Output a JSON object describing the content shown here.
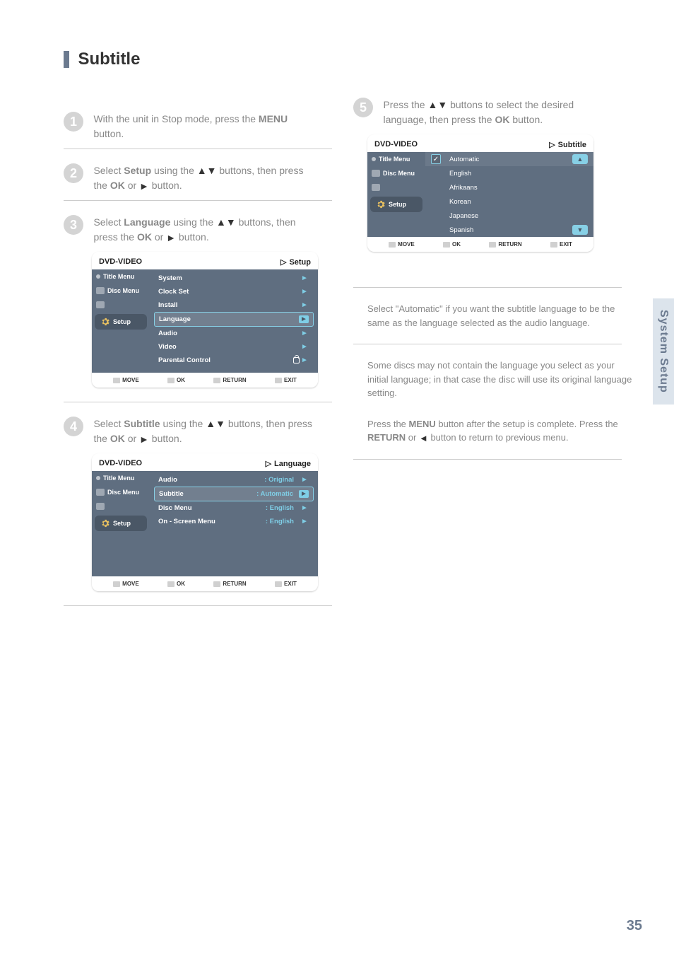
{
  "page": {
    "section_title": "Subtitle",
    "side_tab": "System Setup",
    "page_number": "35"
  },
  "steps": {
    "s1_num": "1",
    "s1_text_a": "With the unit in Stop mode, press the ",
    "s1_text_b": " button.",
    "s1_btn": "MENU",
    "s2_num": "2",
    "s2_text_a": "Select ",
    "s2_bold": "Setup",
    "s2_text_b": " using the ",
    "s2_arrows": "▲▼",
    "s2_text_c": " buttons, then press the ",
    "s2_btn": "OK",
    "s2_text_d": " or ",
    "s2_play": "►",
    "s2_text_e": " button.",
    "s3_num": "3",
    "s3_text_a": "Select ",
    "s3_bold": "Language",
    "s3_text_b": " using the ",
    "s3_arrows": "▲▼",
    "s3_text_c": " buttons, then press the ",
    "s3_btn": "OK",
    "s3_text_d": " or ",
    "s3_play": "►",
    "s3_text_e": " button.",
    "s4_num": "4",
    "s4_text_a": "Select ",
    "s4_bold": "Subtitle",
    "s4_text_b": " using the ",
    "s4_arrows": "▲▼",
    "s4_text_c": " buttons, then press the ",
    "s4_btn": "OK",
    "s4_text_d": " or ",
    "s4_play": "►",
    "s4_text_e": " button.",
    "r5_num": "5",
    "r5_text_a": "Press the ",
    "r5_arrows": "▲▼",
    "r5_text_b": " buttons to select the desired language, then press the ",
    "r5_btn": "OK",
    "r5_text_c": " button.",
    "r5_bullet1": "Select \"Automatic\" if you want the subtitle language to be the same as the language selected as the audio language.",
    "r5_bullet2": "Some discs may not contain the language you select as your initial language; in that case the disc will use its original language setting.",
    "r5_bullet3a": "Press the ",
    "r5_bullet3b": "MENU",
    "r5_bullet3c": " button after the setup is complete. Press the ",
    "r5_bullet3d": "RETURN",
    "r5_bullet3e": " or ",
    "r5_bullet3f": "◄",
    "r5_bullet3g": " button to return to previous menu."
  },
  "osd_common": {
    "header_device": "DVD-VIDEO",
    "side_title": "Title Menu",
    "side_disc": "Disc Menu",
    "side_setup": "Setup",
    "foot_move": "MOVE",
    "foot_ok": "OK",
    "foot_return": "RETURN",
    "foot_exit": "EXIT"
  },
  "osd1": {
    "breadcrumb": "Setup",
    "rows": [
      {
        "label": "System",
        "highlight": false
      },
      {
        "label": "Clock Set",
        "highlight": false
      },
      {
        "label": "Install",
        "highlight": false
      },
      {
        "label": "Language",
        "highlight": true
      },
      {
        "label": "Audio",
        "highlight": false
      },
      {
        "label": "Video",
        "highlight": false
      },
      {
        "label": "Parental Control",
        "lock": true,
        "highlight": false
      }
    ]
  },
  "osd2": {
    "breadcrumb": "Language",
    "rows": [
      {
        "label": "Audio",
        "val": ": Original",
        "highlight": false
      },
      {
        "label": "Subtitle",
        "val": ": Automatic",
        "highlight": true
      },
      {
        "label": "Disc Menu",
        "val": ": English",
        "highlight": false
      },
      {
        "label": "On - Screen Menu",
        "val": ": English",
        "highlight": false
      }
    ]
  },
  "osd3": {
    "breadcrumb": "Subtitle",
    "items": [
      "Automatic",
      "English",
      "Afrikaans",
      "Korean",
      "Japanese",
      "Spanish"
    ]
  },
  "colors": {
    "osd_bg": "#5f6e80",
    "accent": "#7fcee6",
    "tab_bg": "#dce4ec",
    "tab_text": "#6b7a8f"
  }
}
